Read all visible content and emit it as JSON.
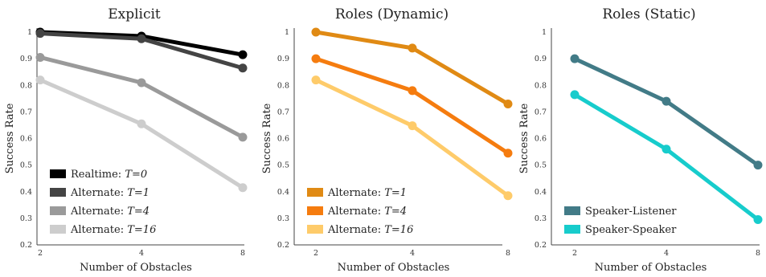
{
  "chart_data": [
    {
      "type": "line",
      "title": "Explicit",
      "xlabel": "Number of Obstacles",
      "ylabel": "Success Rate",
      "x": [
        "2",
        "4",
        "8"
      ],
      "ylim": [
        0.2,
        1.0
      ],
      "yticks": [
        "0.2",
        "0.3",
        "0.4",
        "0.5",
        "0.6",
        "0.7",
        "0.8",
        "0.9",
        "1"
      ],
      "legend_position": "lower-left",
      "grid": false,
      "series": [
        {
          "name": "Realtime: ",
          "param": "T=0",
          "color": "#000000",
          "values": [
            1.0,
            0.985,
            0.915
          ]
        },
        {
          "name": "Alternate: ",
          "param": "T=1",
          "color": "#444444",
          "values": [
            0.995,
            0.975,
            0.865
          ]
        },
        {
          "name": "Alternate: ",
          "param": "T=4",
          "color": "#9a9a9a",
          "values": [
            0.905,
            0.81,
            0.605
          ]
        },
        {
          "name": "Alternate: ",
          "param": "T=16",
          "color": "#cdcdcd",
          "values": [
            0.82,
            0.655,
            0.415
          ]
        }
      ]
    },
    {
      "type": "line",
      "title": "Roles (Dynamic)",
      "xlabel": "Number of Obstacles",
      "ylabel": "Success Rate",
      "x": [
        "2",
        "4",
        "8"
      ],
      "ylim": [
        0.2,
        1.0
      ],
      "yticks": [
        "0.2",
        "0.3",
        "0.4",
        "0.5",
        "0.6",
        "0.7",
        "0.8",
        "0.9",
        "1"
      ],
      "legend_position": "lower-left",
      "grid": false,
      "series": [
        {
          "name": "Alternate: ",
          "param": "T=1",
          "color": "#e08a14",
          "values": [
            1.0,
            0.94,
            0.73
          ]
        },
        {
          "name": "Alternate: ",
          "param": "T=4",
          "color": "#f57c0f",
          "values": [
            0.9,
            0.78,
            0.545
          ]
        },
        {
          "name": "Alternate: ",
          "param": "T=16",
          "color": "#fecb6a",
          "values": [
            0.82,
            0.648,
            0.385
          ]
        }
      ]
    },
    {
      "type": "line",
      "title": "Roles (Static)",
      "xlabel": "Number of Obstacles",
      "ylabel": "Success Rate",
      "x": [
        "2",
        "4",
        "8"
      ],
      "ylim": [
        0.2,
        1.0
      ],
      "yticks": [
        "0.2",
        "0.3",
        "0.4",
        "0.5",
        "0.6",
        "0.7",
        "0.8",
        "0.9",
        "1"
      ],
      "legend_position": "lower-left",
      "grid": false,
      "series": [
        {
          "name": "Speaker-Listener",
          "param": "",
          "color": "#427b87",
          "values": [
            0.9,
            0.74,
            0.5
          ]
        },
        {
          "name": "Speaker-Speaker",
          "param": "",
          "color": "#17cccc",
          "values": [
            0.765,
            0.56,
            0.295
          ]
        }
      ]
    }
  ]
}
